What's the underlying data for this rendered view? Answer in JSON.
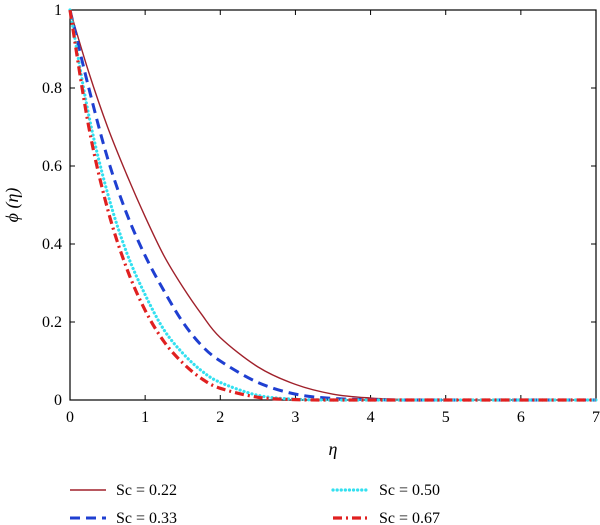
{
  "chart_data": {
    "type": "line",
    "xlabel": "η",
    "ylabel": "ϕ (η)",
    "xlim": [
      0,
      7
    ],
    "ylim": [
      0,
      1
    ],
    "x_ticks": [
      "0",
      "1",
      "2",
      "3",
      "4",
      "5",
      "6",
      "7"
    ],
    "y_ticks": [
      "0",
      "0.2",
      "0.4",
      "0.6",
      "0.8",
      "1"
    ],
    "grid": false,
    "legend_position": "bottom",
    "series": [
      {
        "name": "Sc = 0.22",
        "color": "#a0212b",
        "style": "solid",
        "x": [
          0,
          0.25,
          0.5,
          0.75,
          1,
          1.25,
          1.5,
          1.75,
          2,
          2.5,
          3,
          3.5,
          4,
          4.5,
          5,
          6,
          7
        ],
        "y": [
          1,
          0.84,
          0.7,
          0.58,
          0.47,
          0.37,
          0.29,
          0.22,
          0.16,
          0.085,
          0.04,
          0.015,
          0.005,
          0.001,
          0,
          0,
          0
        ]
      },
      {
        "name": "Sc = 0.33",
        "color": "#1f3fd1",
        "style": "dashed",
        "x": [
          0,
          0.25,
          0.5,
          0.75,
          1,
          1.25,
          1.5,
          1.75,
          2,
          2.5,
          3,
          3.5,
          4,
          4.5,
          5,
          6,
          7
        ],
        "y": [
          1,
          0.8,
          0.62,
          0.48,
          0.37,
          0.28,
          0.2,
          0.14,
          0.1,
          0.045,
          0.015,
          0.004,
          0.001,
          0,
          0,
          0,
          0
        ]
      },
      {
        "name": "Sc = 0.50",
        "color": "#33e0f0",
        "style": "dotted",
        "x": [
          0,
          0.25,
          0.5,
          0.75,
          1,
          1.25,
          1.5,
          1.75,
          2,
          2.5,
          3,
          3.5,
          4,
          4.5,
          5,
          6,
          7
        ],
        "y": [
          1,
          0.73,
          0.53,
          0.38,
          0.27,
          0.18,
          0.12,
          0.075,
          0.045,
          0.012,
          0.002,
          0,
          0,
          0,
          0,
          0,
          0
        ]
      },
      {
        "name": "Sc = 0.67",
        "color": "#e02020",
        "style": "dashdot",
        "x": [
          0,
          0.25,
          0.5,
          0.75,
          1,
          1.25,
          1.5,
          1.75,
          2,
          2.5,
          3,
          3.5,
          4,
          4.5,
          5,
          6,
          7
        ],
        "y": [
          1,
          0.7,
          0.49,
          0.34,
          0.23,
          0.15,
          0.095,
          0.055,
          0.03,
          0.007,
          0.001,
          0,
          0,
          0,
          0,
          0,
          0
        ]
      }
    ]
  }
}
